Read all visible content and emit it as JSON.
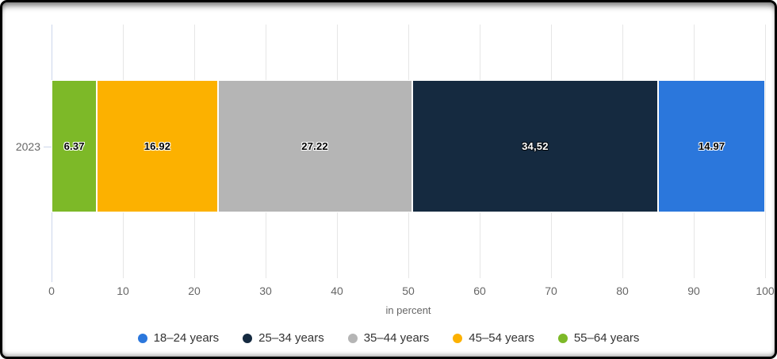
{
  "chart_data": {
    "type": "bar",
    "orientation": "horizontal-stacked",
    "categories": [
      "2023"
    ],
    "title": "",
    "xlabel": "in percent",
    "xlim": [
      0,
      100
    ],
    "x_ticks": [
      "0",
      "10",
      "20",
      "30",
      "40",
      "50",
      "60",
      "70",
      "80",
      "90",
      "100"
    ],
    "grid": "vertical",
    "legend_position": "bottom-center",
    "series": [
      {
        "name": "18–24 years",
        "value": 14.97,
        "label": "14.97",
        "color": "#2b77dc",
        "label_color": "black"
      },
      {
        "name": "25–34 years",
        "value": 34.52,
        "label": "34,52",
        "color": "#152a40",
        "label_color": "white"
      },
      {
        "name": "35–44 years",
        "value": 27.22,
        "label": "27.22",
        "color": "#b5b5b5",
        "label_color": "black"
      },
      {
        "name": "45–54 years",
        "value": 16.92,
        "label": "16.92",
        "color": "#fcb100",
        "label_color": "black"
      },
      {
        "name": "55–64 years",
        "value": 6.37,
        "label": "6.37",
        "color": "#7db928",
        "label_color": "black"
      }
    ],
    "stack_order": [
      4,
      3,
      2,
      1,
      0
    ],
    "colors": {
      "gridline": "#e6e6e6",
      "axis_line": "#ccd6eb",
      "tick_text": "#666666",
      "legend_text": "#333333"
    }
  },
  "axis": {
    "category_label": "2023"
  }
}
